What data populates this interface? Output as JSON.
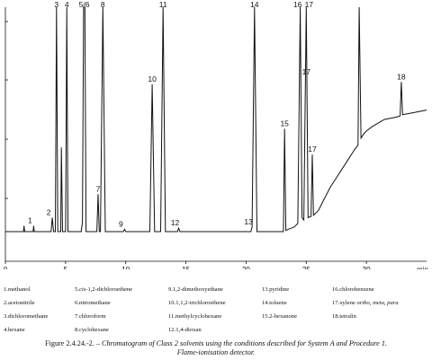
{
  "chart_data": {
    "type": "line",
    "x_unit": "min",
    "xlim": [
      0,
      35
    ],
    "x_ticks": [
      0,
      5,
      10,
      15,
      20,
      25,
      30
    ],
    "ylim": [
      0,
      100
    ],
    "grid": false,
    "baseline": 4,
    "trace": [
      [
        0,
        4
      ],
      [
        1.5,
        4
      ],
      [
        1.55,
        6.5
      ],
      [
        1.6,
        4
      ],
      [
        2.3,
        4
      ],
      [
        2.35,
        6.5
      ],
      [
        2.4,
        4
      ],
      [
        3.8,
        4
      ],
      [
        3.9,
        10
      ],
      [
        4.0,
        4
      ],
      [
        4.15,
        4
      ],
      [
        4.25,
        100
      ],
      [
        4.35,
        4
      ],
      [
        4.6,
        4
      ],
      [
        4.65,
        40
      ],
      [
        4.75,
        4
      ],
      [
        5.0,
        4
      ],
      [
        5.1,
        100
      ],
      [
        5.2,
        4
      ],
      [
        6.3,
        4
      ],
      [
        6.4,
        8
      ],
      [
        6.5,
        100
      ],
      [
        6.6,
        100
      ],
      [
        6.7,
        4
      ],
      [
        7.6,
        4
      ],
      [
        7.7,
        20
      ],
      [
        7.8,
        4
      ],
      [
        7.9,
        4
      ],
      [
        8.1,
        100
      ],
      [
        8.3,
        4
      ],
      [
        9.8,
        4
      ],
      [
        9.9,
        5
      ],
      [
        10.0,
        4
      ],
      [
        12.0,
        4
      ],
      [
        12.2,
        67
      ],
      [
        12.4,
        4
      ],
      [
        12.9,
        4
      ],
      [
        13.1,
        100
      ],
      [
        13.3,
        4
      ],
      [
        14.3,
        4
      ],
      [
        14.4,
        5.5
      ],
      [
        14.5,
        4
      ],
      [
        20.4,
        4
      ],
      [
        20.5,
        6
      ],
      [
        20.7,
        100
      ],
      [
        20.9,
        4
      ],
      [
        23.1,
        4
      ],
      [
        23.2,
        48
      ],
      [
        23.3,
        4.5
      ],
      [
        23.5,
        5
      ],
      [
        24.0,
        6
      ],
      [
        24.3,
        7.5
      ],
      [
        24.5,
        100
      ],
      [
        24.65,
        10
      ],
      [
        24.8,
        9
      ],
      [
        25.0,
        100
      ],
      [
        25.15,
        10
      ],
      [
        25.4,
        10.5
      ],
      [
        25.5,
        37
      ],
      [
        25.6,
        11
      ],
      [
        26,
        13
      ],
      [
        26.5,
        18
      ],
      [
        27,
        23
      ],
      [
        27.5,
        27
      ],
      [
        28,
        31
      ],
      [
        28.5,
        35
      ],
      [
        29,
        39
      ],
      [
        29.3,
        41
      ],
      [
        29.4,
        100
      ],
      [
        29.55,
        44
      ],
      [
        29.8,
        46
      ],
      [
        30,
        47
      ],
      [
        30.5,
        49
      ],
      [
        31,
        50.5
      ],
      [
        31.5,
        52
      ],
      [
        32,
        52.5
      ],
      [
        32.5,
        53
      ],
      [
        32.8,
        53.5
      ],
      [
        32.9,
        68
      ],
      [
        33.0,
        54
      ],
      [
        33.5,
        54.5
      ],
      [
        34,
        55
      ],
      [
        34.5,
        55.5
      ],
      [
        35,
        56
      ]
    ],
    "peaks": [
      {
        "label": "1",
        "x": 2.35,
        "y": 6.5
      },
      {
        "label": "2",
        "x": 3.9,
        "y": 10
      },
      {
        "label": "3",
        "x": 4.25,
        "y": 100
      },
      {
        "label": "4",
        "x": 5.1,
        "y": 100
      },
      {
        "label": "5/6",
        "x": 6.55,
        "y": 100
      },
      {
        "label": "7",
        "x": 7.7,
        "y": 20
      },
      {
        "label": "8",
        "x": 8.1,
        "y": 100
      },
      {
        "label": "9",
        "x": 9.9,
        "y": 5
      },
      {
        "label": "10",
        "x": 12.2,
        "y": 67
      },
      {
        "label": "11",
        "x": 13.1,
        "y": 100
      },
      {
        "label": "12",
        "x": 14.4,
        "y": 5.5
      },
      {
        "label": "13",
        "x": 20.5,
        "y": 6
      },
      {
        "label": "14",
        "x": 20.7,
        "y": 100
      },
      {
        "label": "15",
        "x": 23.2,
        "y": 48
      },
      {
        "label": "16",
        "x": 24.5,
        "y": 100
      },
      {
        "label": "17",
        "x": 25.0,
        "y": 100
      },
      {
        "label": "17",
        "x": 25.0,
        "y": 70
      },
      {
        "label": "17",
        "x": 25.5,
        "y": 37
      },
      {
        "label": "18",
        "x": 32.9,
        "y": 68
      }
    ],
    "line_color": "#111111"
  },
  "legend": [
    {
      "num": "1.",
      "name": "methanol"
    },
    {
      "num": "5.",
      "name": "cis-1,2-dichloroethene",
      "prefix": "cis",
      "rest": "-1,2-dichloroethene"
    },
    {
      "num": "9.",
      "name": "1,2-dimethoxyethane"
    },
    {
      "num": "13.",
      "name": "pyridine"
    },
    {
      "num": "16.",
      "name": "chlorobenzene"
    },
    {
      "num": "2.",
      "name": "acetonitrile"
    },
    {
      "num": "6.",
      "name": "nitromethane"
    },
    {
      "num": "10.",
      "name": "1,1,2-trichloroethene"
    },
    {
      "num": "14.",
      "name": "toluene"
    },
    {
      "num": "17.",
      "name": "xylene ortho, meta, para",
      "prefix": "xylene ",
      "rest": "ortho, meta, para",
      "italic_rest": true
    },
    {
      "num": "3.",
      "name": "dichloromethane"
    },
    {
      "num": "7.",
      "name": "chloroform"
    },
    {
      "num": "11.",
      "name": "methylcyclohexane"
    },
    {
      "num": "15.",
      "name": "2-hexanone"
    },
    {
      "num": "18.",
      "name": "tetralin"
    },
    {
      "num": "4.",
      "name": "hexane"
    },
    {
      "num": "8.",
      "name": "cyclohexane"
    },
    {
      "num": "12.",
      "name": "1,4-dioxan"
    }
  ],
  "caption": {
    "prefix": "Figure 2.4.24.-2. – ",
    "line1": "Chromatogram of Class 2 solvents using the conditions described for System A and Procedure 1.",
    "line2": "Flame-ionisation detector."
  }
}
